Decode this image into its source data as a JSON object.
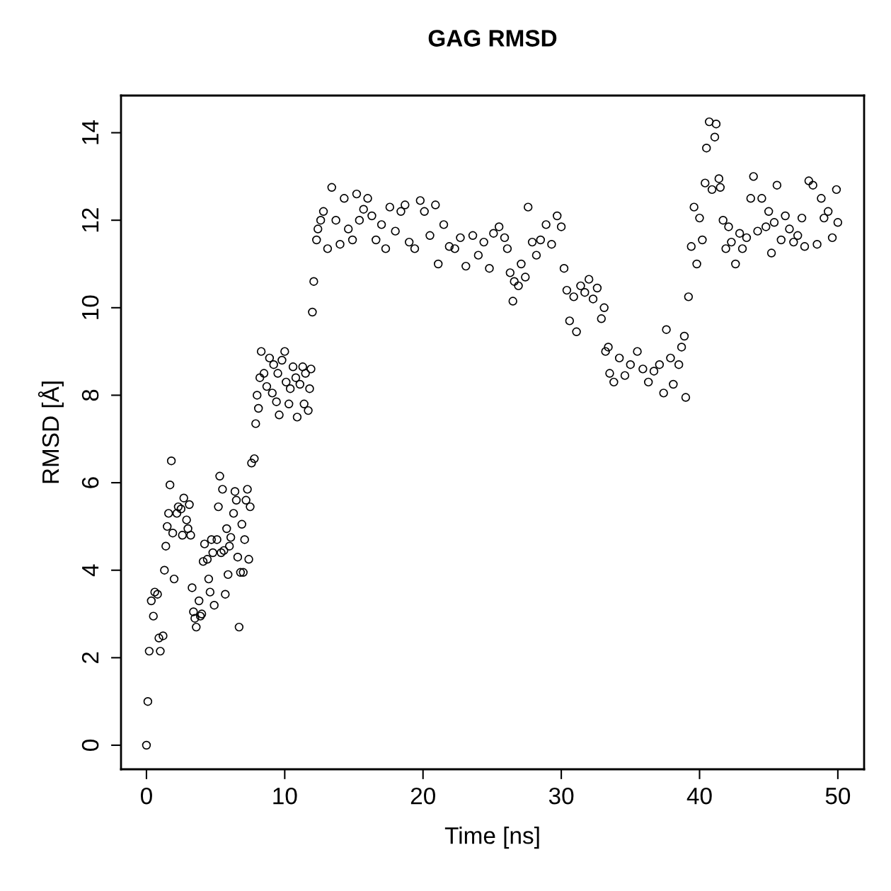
{
  "chart_data": {
    "type": "scatter",
    "title": "GAG RMSD",
    "xlabel": "Time [ns]",
    "ylabel": "RMSD [Å]",
    "xlim": [
      -1.84,
      51.9
    ],
    "ylim": [
      -0.55,
      14.85
    ],
    "xticks": [
      0,
      10,
      20,
      30,
      40,
      50
    ],
    "yticks": [
      0,
      2,
      4,
      6,
      8,
      10,
      12,
      14
    ],
    "grid": false,
    "marker": "circle",
    "series": [
      {
        "color": "#000000",
        "x": [
          0,
          0.1,
          0.2,
          0.35,
          0.5,
          0.6,
          0.8,
          0.9,
          1.0,
          1.2,
          1.3,
          1.4,
          1.5,
          1.6,
          1.7,
          1.8,
          1.9,
          2.0,
          2.2,
          2.3,
          2.5,
          2.6,
          2.7,
          2.9,
          3.0,
          3.1,
          3.2,
          3.3,
          3.4,
          3.5,
          3.6,
          3.8,
          3.9,
          4.0,
          4.1,
          4.2,
          4.4,
          4.5,
          4.6,
          4.7,
          4.8,
          4.9,
          5.1,
          5.2,
          5.3,
          5.4,
          5.5,
          5.6,
          5.7,
          5.8,
          5.9,
          6.0,
          6.1,
          6.3,
          6.4,
          6.5,
          6.6,
          6.7,
          6.8,
          6.9,
          7.0,
          7.1,
          7.2,
          7.3,
          7.4,
          7.5,
          7.6,
          7.8,
          7.9,
          8.0,
          8.1,
          8.2,
          8.3,
          8.5,
          8.7,
          8.9,
          9.1,
          9.2,
          9.4,
          9.5,
          9.6,
          9.8,
          10.0,
          10.1,
          10.3,
          10.4,
          10.6,
          10.8,
          10.9,
          11.1,
          11.3,
          11.4,
          11.5,
          11.7,
          11.8,
          11.9,
          12.0,
          12.1,
          12.3,
          12.4,
          12.6,
          12.8,
          13.1,
          13.4,
          13.7,
          14.0,
          14.3,
          14.6,
          14.9,
          15.2,
          15.4,
          15.7,
          16.0,
          16.3,
          16.6,
          17.0,
          17.3,
          17.6,
          18.0,
          18.4,
          18.7,
          19.0,
          19.4,
          19.8,
          20.1,
          20.5,
          20.9,
          21.1,
          21.5,
          21.9,
          22.3,
          22.7,
          23.1,
          23.6,
          24.0,
          24.4,
          24.8,
          25.1,
          25.5,
          25.9,
          26.1,
          26.3,
          26.5,
          26.6,
          26.9,
          27.1,
          27.4,
          27.6,
          27.9,
          28.2,
          28.5,
          28.9,
          29.3,
          29.7,
          30.0,
          30.2,
          30.4,
          30.6,
          30.9,
          31.1,
          31.4,
          31.7,
          32.0,
          32.3,
          32.6,
          32.9,
          33.1,
          33.2,
          33.4,
          33.5,
          33.8,
          34.2,
          34.6,
          35.0,
          35.5,
          35.9,
          36.3,
          36.7,
          37.1,
          37.4,
          37.6,
          37.9,
          38.1,
          38.5,
          38.7,
          38.9,
          39.0,
          39.2,
          39.4,
          39.6,
          39.8,
          40.0,
          40.2,
          40.4,
          40.5,
          40.7,
          40.9,
          41.1,
          41.2,
          41.4,
          41.5,
          41.7,
          41.9,
          42.1,
          42.3,
          42.6,
          42.9,
          43.1,
          43.4,
          43.7,
          43.9,
          44.2,
          44.5,
          44.8,
          45.0,
          45.2,
          45.4,
          45.6,
          45.9,
          46.2,
          46.5,
          46.8,
          47.1,
          47.4,
          47.6,
          47.9,
          48.2,
          48.5,
          48.8,
          49.0,
          49.3,
          49.6,
          49.9,
          50.0
        ],
        "values": [
          0,
          1.0,
          2.15,
          3.3,
          2.95,
          3.5,
          3.45,
          2.45,
          2.15,
          2.5,
          4.0,
          4.55,
          5.0,
          5.3,
          5.95,
          6.5,
          4.85,
          3.8,
          5.3,
          5.45,
          5.4,
          4.8,
          5.65,
          5.15,
          4.95,
          5.5,
          4.8,
          3.6,
          3.05,
          2.9,
          2.7,
          3.3,
          2.95,
          3.0,
          4.2,
          4.6,
          4.25,
          3.8,
          3.5,
          4.7,
          4.4,
          3.2,
          4.7,
          5.45,
          6.15,
          4.4,
          5.85,
          4.45,
          3.45,
          4.95,
          3.9,
          4.55,
          4.75,
          5.3,
          5.8,
          5.6,
          4.3,
          2.7,
          3.95,
          5.05,
          3.95,
          4.7,
          5.6,
          5.85,
          4.25,
          5.45,
          6.45,
          6.55,
          7.35,
          8.0,
          7.7,
          8.4,
          9.0,
          8.5,
          8.2,
          8.85,
          8.05,
          8.7,
          7.85,
          8.5,
          7.55,
          8.8,
          9.0,
          8.3,
          7.8,
          8.15,
          8.65,
          8.4,
          7.5,
          8.25,
          8.65,
          7.8,
          8.5,
          7.65,
          8.15,
          8.6,
          9.9,
          10.6,
          11.55,
          11.8,
          12.0,
          12.2,
          11.35,
          12.75,
          12.0,
          11.45,
          12.5,
          11.8,
          11.55,
          12.6,
          12.0,
          12.25,
          12.5,
          12.1,
          11.55,
          11.9,
          11.35,
          12.3,
          11.75,
          12.2,
          12.35,
          11.5,
          11.35,
          12.45,
          12.2,
          11.65,
          12.35,
          11.0,
          11.9,
          11.4,
          11.35,
          11.6,
          10.95,
          11.65,
          11.2,
          11.5,
          10.9,
          11.7,
          11.85,
          11.6,
          11.35,
          10.8,
          10.15,
          10.6,
          10.5,
          11.0,
          10.7,
          12.3,
          11.5,
          11.2,
          11.55,
          11.9,
          11.45,
          12.1,
          11.85,
          10.9,
          10.4,
          9.7,
          10.25,
          9.45,
          10.5,
          10.35,
          10.65,
          10.2,
          10.45,
          9.75,
          10.0,
          9.0,
          9.1,
          8.5,
          8.3,
          8.85,
          8.45,
          8.7,
          9.0,
          8.6,
          8.3,
          8.55,
          8.7,
          8.05,
          9.5,
          8.85,
          8.25,
          8.7,
          9.1,
          9.35,
          7.95,
          10.25,
          11.4,
          12.3,
          11.0,
          12.05,
          11.55,
          12.85,
          13.65,
          14.25,
          12.7,
          13.9,
          14.2,
          12.95,
          12.75,
          12.0,
          11.35,
          11.85,
          11.5,
          11.0,
          11.7,
          11.35,
          11.6,
          12.5,
          13.0,
          11.75,
          12.5,
          11.85,
          12.2,
          11.25,
          11.95,
          12.8,
          11.55,
          12.1,
          11.8,
          11.5,
          11.65,
          12.05,
          11.4,
          12.9,
          12.8,
          11.45,
          12.5,
          12.05,
          12.2,
          11.6,
          12.7,
          11.95
        ]
      }
    ]
  }
}
